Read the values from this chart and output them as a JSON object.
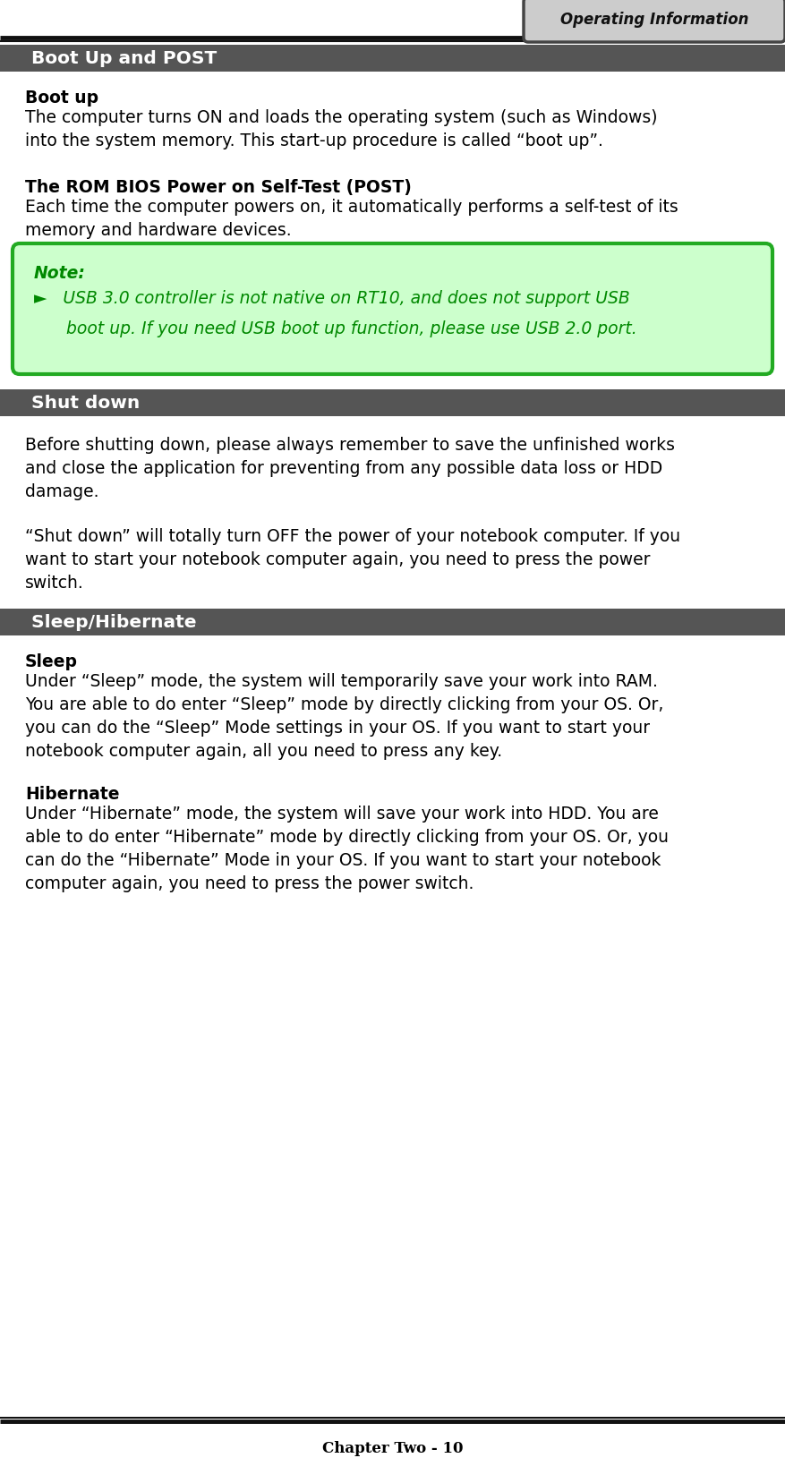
{
  "page_title": "Operating Information",
  "footer": "Chapter Two - 10",
  "section1_title": " Boot Up and POST",
  "section2_title": " Shut down",
  "section3_title": " Sleep/Hibernate",
  "boot_up_heading": "Boot up",
  "boot_up_text1": "The computer turns ON and loads the operating system (such as Windows)",
  "boot_up_text2": "into the system memory. This start-up procedure is called “boot up”.",
  "post_heading": "The ROM BIOS Power on Self-Test (POST)",
  "post_text1": "Each time the computer powers on, it automatically performs a self-test of its",
  "post_text2": "memory and hardware devices.",
  "note_heading": "Note:",
  "note_line1": "►   USB 3.0 controller is not native on RT10, and does not support USB",
  "note_line2": "      boot up. If you need USB boot up function, please use USB 2.0 port.",
  "shutdown_text1a": "Before shutting down, please always remember to save the unfinished works",
  "shutdown_text1b": "and close the application for preventing from any possible data loss or HDD",
  "shutdown_text1c": "damage.",
  "shutdown_text2a": "“Shut down” will totally turn OFF the power of your notebook computer. If you",
  "shutdown_text2b": "want to start your notebook computer again, you need to press the power",
  "shutdown_text2c": "switch.",
  "sleep_heading": "Sleep",
  "sleep_text1": "Under “Sleep” mode, the system will temporarily save your work into RAM.",
  "sleep_text2": "You are able to do enter “Sleep” mode by directly clicking from your OS. Or,",
  "sleep_text3": "you can do the “Sleep” Mode settings in your OS. If you want to start your",
  "sleep_text4": "notebook computer again, all you need to press any key.",
  "hibernate_heading": "Hibernate",
  "hibernate_text1": "Under “Hibernate” mode, the system will save your work into HDD. You are",
  "hibernate_text2": "able to do enter “Hibernate” mode by directly clicking from your OS. Or, you",
  "hibernate_text3": "can do the “Hibernate” Mode in your OS. If you want to start your notebook",
  "hibernate_text4": "computer again, you need to press the power switch.",
  "bg_color": "#ffffff",
  "section_bar_color": "#555555",
  "section_text_color": "#ffffff",
  "note_bg_color": "#ccffcc",
  "note_border_color": "#22aa22",
  "note_text_color": "#008800",
  "body_text_color": "#000000",
  "tag_bg_color": "#cccccc",
  "tag_border_color": "#444444",
  "line_color": "#111111"
}
